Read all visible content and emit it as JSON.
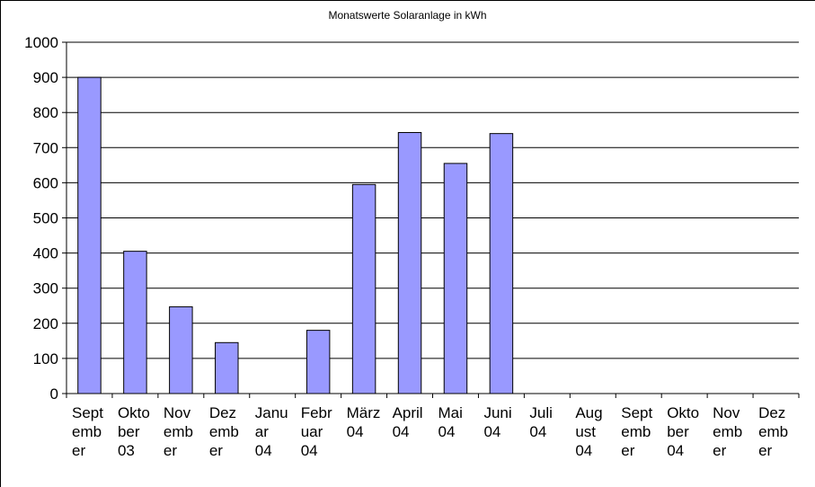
{
  "chart_data": {
    "type": "bar",
    "title": "Monatswerte Solaranlage in kWh",
    "xlabel": "",
    "ylabel": "",
    "ylim": [
      0,
      1000
    ],
    "yticks": [
      "0",
      "100",
      "200",
      "300",
      "400",
      "500",
      "600",
      "700",
      "800",
      "900",
      "1000"
    ],
    "grid": true,
    "bar_color": "#9999ff",
    "categories": [
      [
        "Sept",
        "emb",
        "er"
      ],
      [
        "Okto",
        "ber",
        "03"
      ],
      [
        "Nov",
        "emb",
        "er"
      ],
      [
        "Dez",
        "emb",
        "er"
      ],
      [
        "Janu",
        "ar",
        "04"
      ],
      [
        "Febr",
        "uar",
        "04"
      ],
      [
        "März",
        "04"
      ],
      [
        "April",
        "04"
      ],
      [
        "Mai",
        "04"
      ],
      [
        "Juni",
        "04"
      ],
      [
        "Juli",
        "04"
      ],
      [
        "Aug",
        "ust",
        "04"
      ],
      [
        "Sept",
        "emb",
        "er"
      ],
      [
        "Okto",
        "ber",
        "04"
      ],
      [
        "Nov",
        "emb",
        "er"
      ],
      [
        "Dez",
        "emb",
        "er"
      ]
    ],
    "values": [
      900,
      405,
      247,
      145,
      0,
      180,
      595,
      743,
      655,
      740,
      0,
      0,
      0,
      0,
      0,
      0
    ]
  }
}
